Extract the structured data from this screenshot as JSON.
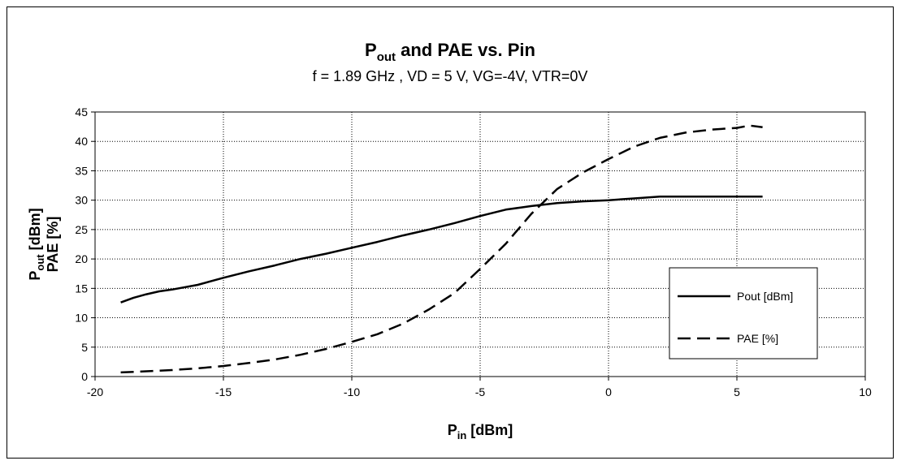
{
  "chart_data": {
    "type": "line",
    "title_main": "P",
    "title_sub": "out",
    "title_rest": " and PAE vs. Pin",
    "subtitle": "f = 1.89 GHz , VD = 5 V, VG=-4V, VTR=0V",
    "xlabel_main": "P",
    "xlabel_sub": "in",
    "xlabel_rest": " [dBm]",
    "ylabel_line1_main": "P",
    "ylabel_line1_sub": "out",
    "ylabel_line1_rest": " [dBm]",
    "ylabel_line2": "PAE [%]",
    "xlim": [
      -20,
      10
    ],
    "ylim": [
      0,
      45
    ],
    "x_ticks": [
      "-20",
      "-15",
      "-10",
      "-5",
      "0",
      "5",
      "10"
    ],
    "y_ticks": [
      "0",
      "5",
      "10",
      "15",
      "20",
      "25",
      "30",
      "35",
      "40",
      "45"
    ],
    "grid": true,
    "legend_position": "bottom-right",
    "series": [
      {
        "name": "Pout [dBm]",
        "style": "solid",
        "color": "#000000",
        "x": [
          -19,
          -18.5,
          -18,
          -17.5,
          -17,
          -16,
          -15,
          -14,
          -13,
          -12,
          -11,
          -10,
          -9,
          -8,
          -7,
          -6,
          -5,
          -4,
          -3,
          -2,
          -1,
          0,
          1,
          2,
          3,
          4,
          5,
          6
        ],
        "y": [
          12.6,
          13.4,
          14.0,
          14.5,
          14.8,
          15.6,
          16.8,
          17.9,
          18.9,
          20.0,
          20.9,
          21.9,
          22.9,
          24.0,
          25.0,
          26.1,
          27.3,
          28.4,
          29.0,
          29.5,
          29.8,
          30.0,
          30.3,
          30.6,
          30.6,
          30.6,
          30.6,
          30.6
        ]
      },
      {
        "name": "PAE [%]",
        "style": "dashed",
        "color": "#000000",
        "x": [
          -19,
          -18,
          -17,
          -16,
          -15,
          -14,
          -13,
          -12,
          -11,
          -10,
          -9,
          -8,
          -7,
          -6,
          -5,
          -4,
          -3,
          -2,
          -1,
          0,
          1,
          2,
          3,
          4,
          5,
          5.5,
          6
        ],
        "y": [
          0.7,
          0.9,
          1.1,
          1.4,
          1.8,
          2.3,
          2.9,
          3.7,
          4.7,
          5.9,
          7.2,
          9.0,
          11.4,
          14.2,
          18.3,
          22.6,
          27.7,
          31.9,
          34.7,
          37.0,
          39.1,
          40.6,
          41.5,
          42.0,
          42.3,
          42.7,
          42.4
        ]
      }
    ]
  }
}
